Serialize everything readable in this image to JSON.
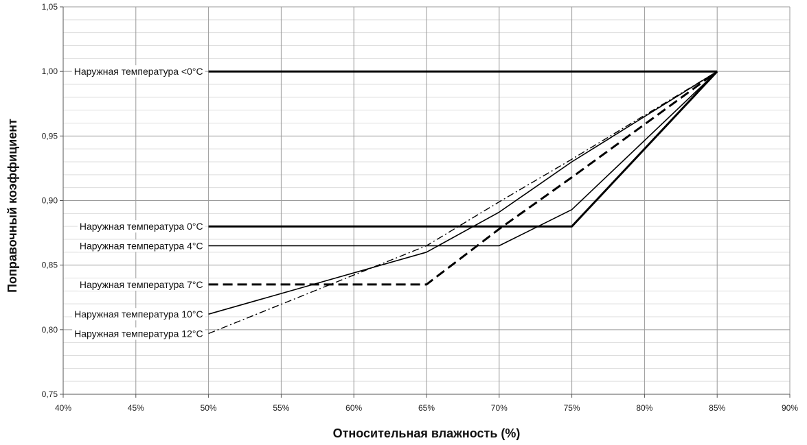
{
  "chart_data": {
    "type": "line",
    "xlabel": "Относительная влажность (%)",
    "ylabel": "Поправочный коэффициент",
    "xlim": [
      40,
      90
    ],
    "ylim": [
      0.75,
      1.05
    ],
    "x_ticks": [
      "40%",
      "45%",
      "50%",
      "55%",
      "60%",
      "65%",
      "70%",
      "75%",
      "80%",
      "85%",
      "90%"
    ],
    "y_ticks": [
      "0,75",
      "0,80",
      "0,85",
      "0,90",
      "0,95",
      "1,00",
      "1,05"
    ],
    "grid": true,
    "series": [
      {
        "name": "Наружная температура <0°C",
        "x": [
          50,
          85
        ],
        "y": [
          1.0,
          1.0
        ],
        "style": "solid-thick"
      },
      {
        "name": "Наружная температура 0°C",
        "x": [
          50,
          75,
          85
        ],
        "y": [
          0.88,
          0.88,
          1.0
        ],
        "style": "solid-thick"
      },
      {
        "name": "Наружная температура 4°C",
        "x": [
          50,
          70,
          75,
          85
        ],
        "y": [
          0.865,
          0.865,
          0.893,
          1.0
        ],
        "style": "solid-thin"
      },
      {
        "name": "Наружная температура 7°C",
        "x": [
          50,
          65,
          70,
          75,
          85
        ],
        "y": [
          0.835,
          0.835,
          0.878,
          0.918,
          1.0
        ],
        "style": "dashed"
      },
      {
        "name": "Наружная температура 10°C",
        "x": [
          50,
          65,
          70,
          75,
          85
        ],
        "y": [
          0.812,
          0.86,
          0.891,
          0.93,
          1.0
        ],
        "style": "solid-thin"
      },
      {
        "name": "Наружная температура 12°C",
        "x": [
          50,
          65,
          70,
          75,
          85
        ],
        "y": [
          0.797,
          0.865,
          0.899,
          0.932,
          1.0
        ],
        "style": "dashdot"
      }
    ]
  }
}
